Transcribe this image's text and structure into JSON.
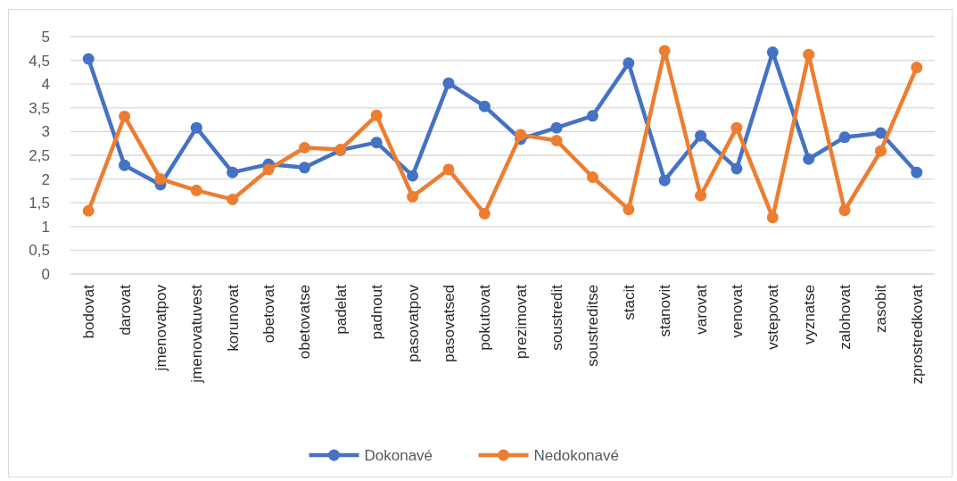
{
  "chart_data": {
    "type": "line",
    "categories": [
      "bodovat",
      "darovat",
      "jmenovatpov",
      "jmenovatuvest",
      "korunovat",
      "obetovat",
      "obetovatse",
      "padelat",
      "padnout",
      "pasovatpov",
      "pasovatsed",
      "pokutovat",
      "prezimovat",
      "soustredit",
      "soustreditse",
      "stacit",
      "stanovit",
      "varovat",
      "venovat",
      "vstepovat",
      "vyznatse",
      "zalohovat",
      "zasobit",
      "zprostredkovat"
    ],
    "series": [
      {
        "name": "Dokonavé",
        "color": "#4472c4",
        "values": [
          4.53,
          2.29,
          1.88,
          3.08,
          2.14,
          2.31,
          2.24,
          2.61,
          2.77,
          2.07,
          4.02,
          3.53,
          2.84,
          3.08,
          3.33,
          4.44,
          1.97,
          2.91,
          2.22,
          4.67,
          2.42,
          2.88,
          2.97,
          2.14
        ]
      },
      {
        "name": "Nedokonavé",
        "color": "#ed7d31",
        "values": [
          1.33,
          3.32,
          2.0,
          1.76,
          1.57,
          2.2,
          2.66,
          2.62,
          3.34,
          1.63,
          2.2,
          1.27,
          2.93,
          2.81,
          2.04,
          1.36,
          4.7,
          1.65,
          3.08,
          1.19,
          4.62,
          1.34,
          2.59,
          4.35
        ]
      }
    ],
    "ylim": [
      0,
      5
    ],
    "yticks": [
      0,
      {
        "value": 0.5,
        "label": "0,5"
      },
      1,
      {
        "value": 1.5,
        "label": "1,5"
      },
      2,
      {
        "value": 2.5,
        "label": "2,5"
      },
      3,
      {
        "value": 3.5,
        "label": "3,5"
      },
      4,
      {
        "value": 4.5,
        "label": "4,5"
      },
      5
    ],
    "grid": "y",
    "legend": "bottom",
    "marker": "circle",
    "line_style": "solid"
  }
}
